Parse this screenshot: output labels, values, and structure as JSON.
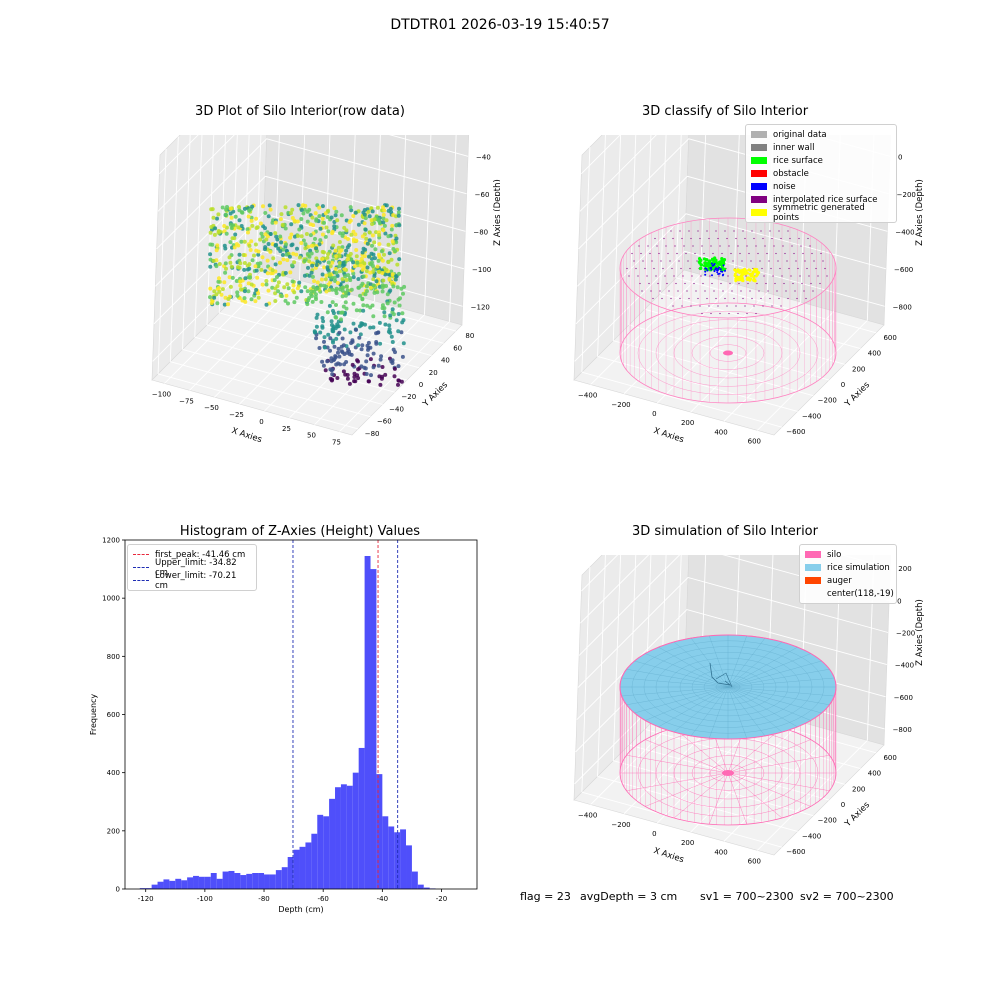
{
  "suptitle": "DTDTR01 2026-03-19 15:40:57",
  "chart_data": [
    {
      "type": "scatter",
      "projection": "3d",
      "title": "3D Plot of Silo Interior(row data)",
      "xlabel": "X Axies",
      "ylabel": "Y Axies",
      "zlabel": "Z Axies (Depth)",
      "xticks": [
        "−100",
        "−75",
        "−50",
        "−25",
        "0",
        "25",
        "50",
        "75"
      ],
      "yticks": [
        "−80",
        "−60",
        "−40",
        "−20",
        "0",
        "20",
        "40",
        "60",
        "80"
      ],
      "zticks": [
        "−20",
        "−40",
        "−60",
        "−80",
        "−100",
        "−120"
      ],
      "colormap": "viridis",
      "grid": true
    },
    {
      "type": "scatter",
      "projection": "3d",
      "title": "3D classify of Silo Interior",
      "xlabel": "X Axies",
      "ylabel": "Y Axies",
      "zlabel": "Z Axies (Depth)",
      "xticks": [
        "−400",
        "−200",
        "0",
        "200",
        "400",
        "600"
      ],
      "yticks": [
        "−600",
        "−400",
        "−200",
        "0",
        "200",
        "400",
        "600"
      ],
      "zticks": [
        "200",
        "0",
        "−200",
        "−400",
        "−600",
        "−800"
      ],
      "legend_position": "top-right",
      "legend": [
        {
          "label": "original data",
          "color": "#b0b0b0"
        },
        {
          "label": "inner wall",
          "color": "#808080"
        },
        {
          "label": "rice surface",
          "color": "#00ff00"
        },
        {
          "label": "obstacle",
          "color": "#ff0000"
        },
        {
          "label": "noise",
          "color": "#0000ff"
        },
        {
          "label": "interpolated rice surface",
          "color": "#800080"
        },
        {
          "label": "symmetric generated points",
          "color": "#ffff00"
        }
      ],
      "grid": true
    },
    {
      "type": "bar",
      "subtype": "histogram",
      "title": "Histogram of Z-Axies (Height) Values",
      "xlabel": "Depth (cm)",
      "ylabel": "Frequency",
      "xlim": [
        -127,
        -8
      ],
      "ylim": [
        0,
        1200
      ],
      "xticks": [
        -120,
        -100,
        -80,
        -60,
        -40,
        -20
      ],
      "yticks": [
        0,
        200,
        400,
        600,
        800,
        1000,
        1200
      ],
      "bin_start": -122,
      "bin_width": 2,
      "values": [
        3,
        3,
        15,
        25,
        33,
        28,
        35,
        30,
        40,
        45,
        42,
        42,
        55,
        35,
        60,
        62,
        55,
        48,
        52,
        55,
        55,
        50,
        50,
        65,
        75,
        110,
        135,
        145,
        160,
        190,
        255,
        250,
        310,
        350,
        360,
        355,
        400,
        485,
        1145,
        1100,
        395,
        250,
        215,
        195,
        205,
        150,
        60,
        15,
        5,
        2
      ],
      "bar_color": "#4646fa",
      "lines": [
        {
          "label": "first_peak: -41.46 cm",
          "x": -41.46,
          "color": "#e8283c"
        },
        {
          "label": "Upper_limit: -34.82 cm",
          "x": -34.82,
          "color": "#1e2db4"
        },
        {
          "label": "Lower_limit: -70.21 cm",
          "x": -70.21,
          "color": "#1e2db4"
        }
      ],
      "legend_position": "top-left",
      "grid": false
    },
    {
      "type": "scatter",
      "projection": "3d",
      "title": "3D simulation of Silo Interior",
      "xlabel": "X Axies",
      "ylabel": "Y Axies",
      "zlabel": "Z Axies (Depth)",
      "xticks": [
        "−400",
        "−200",
        "0",
        "200",
        "400",
        "600"
      ],
      "yticks": [
        "−600",
        "−400",
        "−200",
        "0",
        "200",
        "400",
        "600"
      ],
      "zticks": [
        "400",
        "200",
        "0",
        "−200",
        "−400",
        "−600",
        "−800"
      ],
      "legend_position": "top-right",
      "legend": [
        {
          "label": "silo",
          "color": "#ff69b4"
        },
        {
          "label": "rice simulation",
          "color": "#87ceeb"
        },
        {
          "label": "auger",
          "color": "#ff4500"
        },
        {
          "label": "center(118,-19)",
          "color": ""
        }
      ],
      "grid": true
    }
  ],
  "footer": {
    "flag": "flag = 23",
    "avg": "avgDepth = 3 cm",
    "sv1": "sv1 = 700~2300",
    "sv2": "sv2 = 700~2300"
  }
}
